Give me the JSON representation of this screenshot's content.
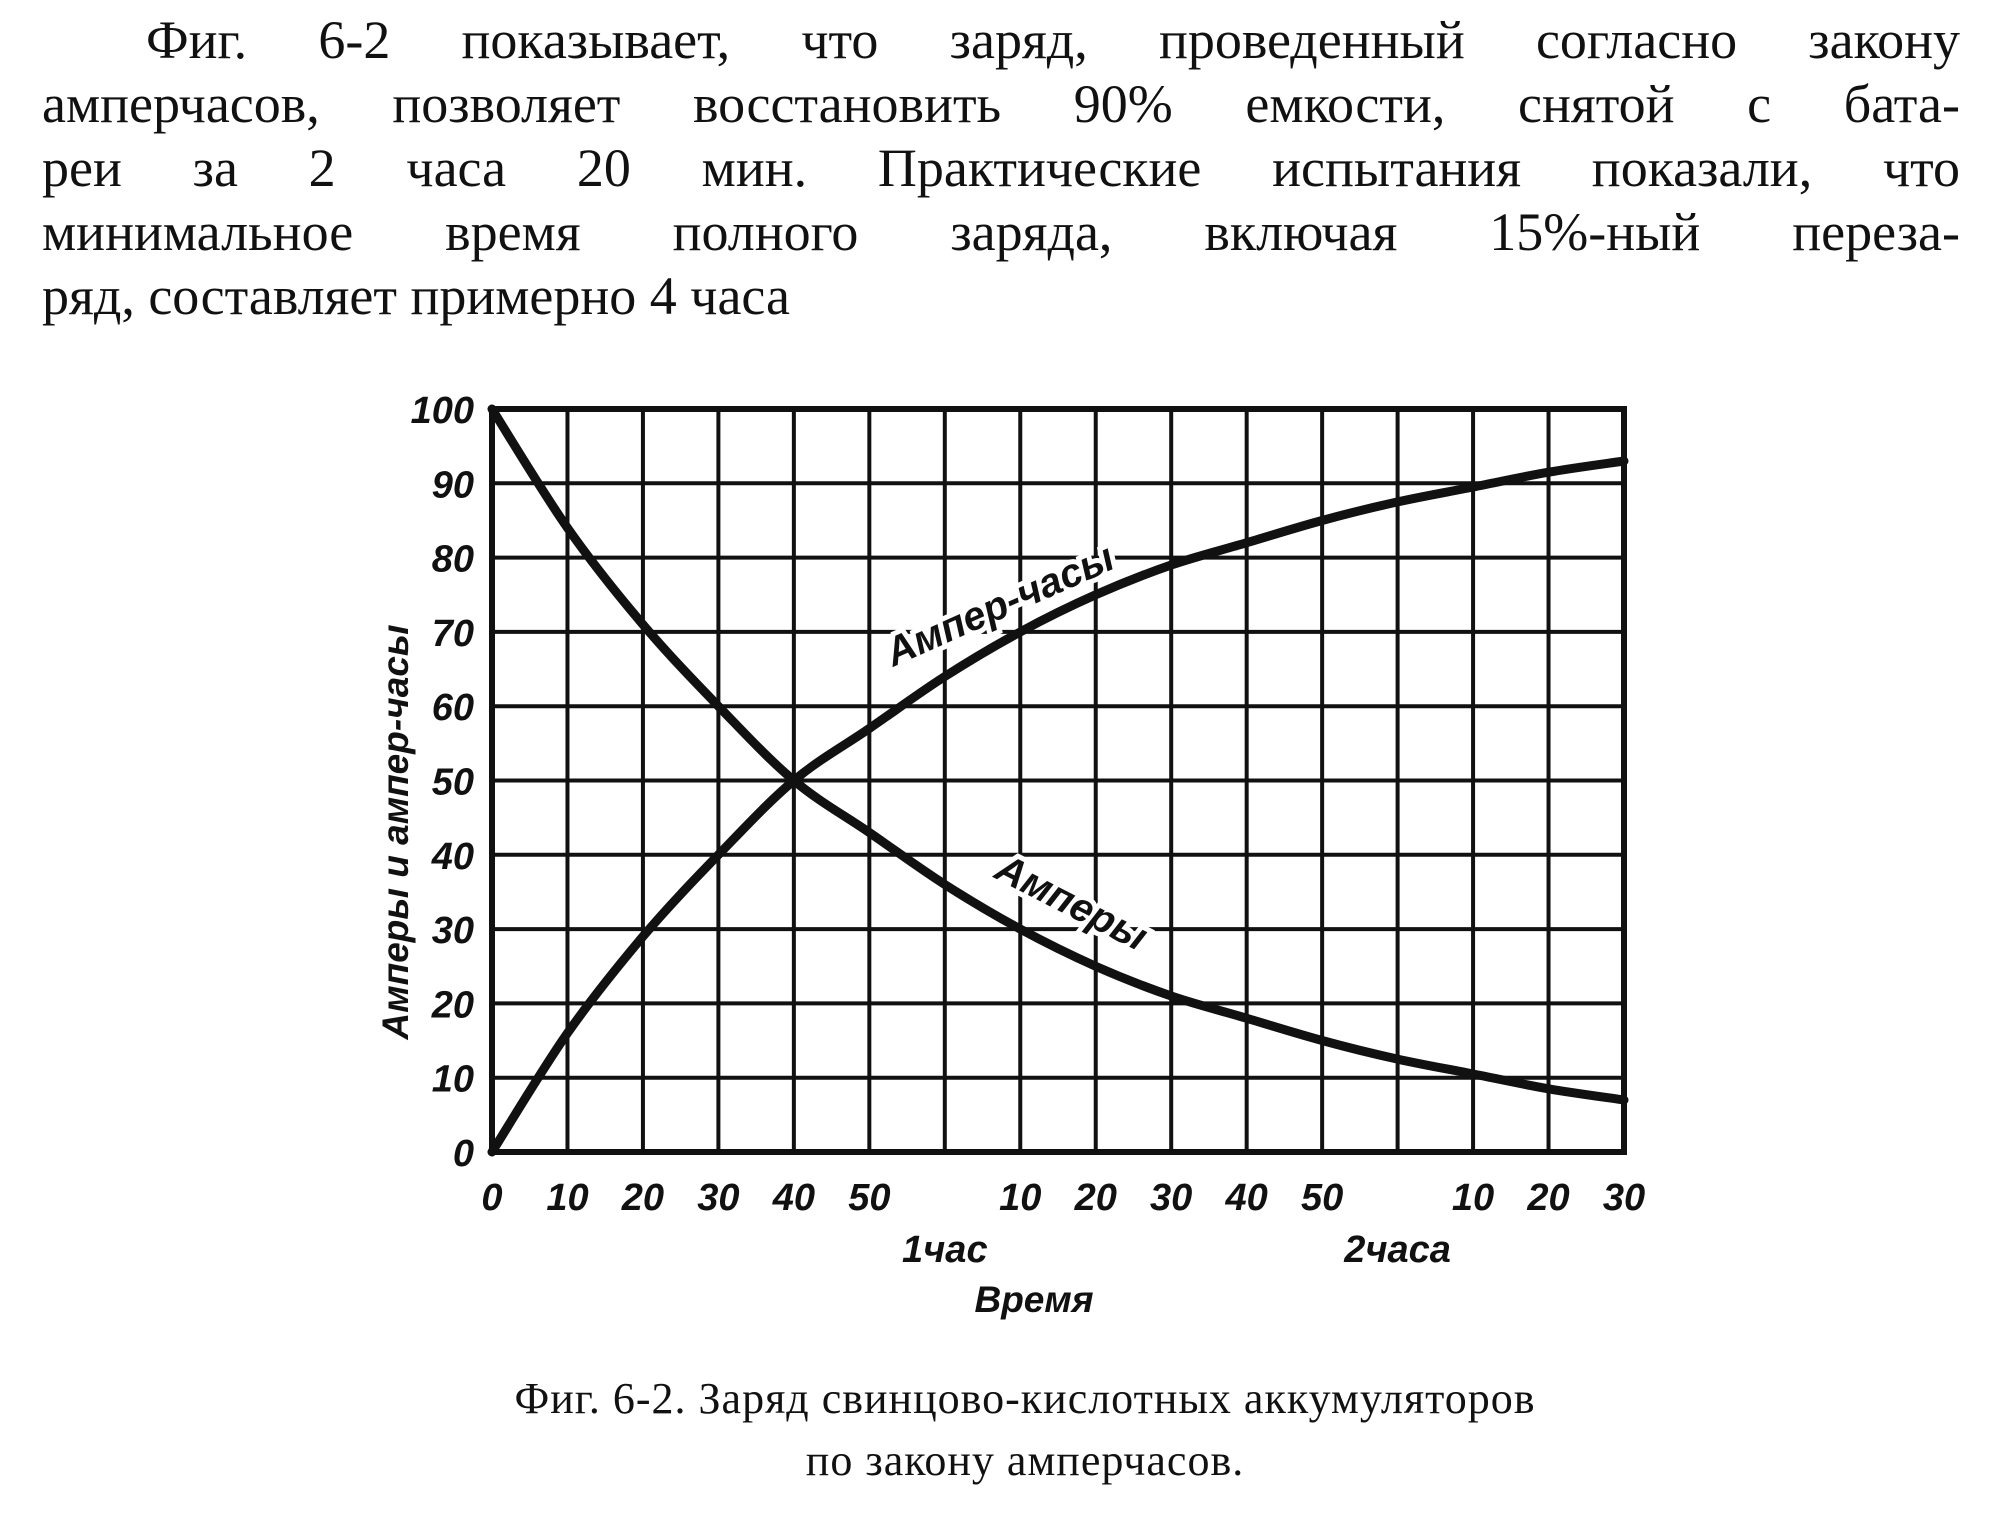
{
  "paragraph": {
    "lines": [
      "Фиг. 6-2 показывает, что заряд, проведенный согласно закону",
      "амперчасов, позволяет восстановить 90% емкости, снятой с бата-",
      "реи за 2 часа 20 мин. Практические испытания показали, что",
      "минимальное время полного заряда, включая 15%-ный переза-",
      "ряд, составляет примерно 4 часа"
    ]
  },
  "chart_data": {
    "type": "line",
    "ylabel": "Амперы и ампер-часы",
    "xlabel": "Время",
    "ylim": [
      0,
      100
    ],
    "xlim": [
      0,
      150
    ],
    "x_unit_note": "minutes",
    "yticks": [
      "0",
      "10",
      "20",
      "30",
      "40",
      "50",
      "60",
      "70",
      "80",
      "90",
      "100"
    ],
    "xticks": [
      {
        "x": 0,
        "label": "0"
      },
      {
        "x": 10,
        "label": "10"
      },
      {
        "x": 20,
        "label": "20"
      },
      {
        "x": 30,
        "label": "30"
      },
      {
        "x": 40,
        "label": "40"
      },
      {
        "x": 50,
        "label": "50"
      },
      {
        "x": 70,
        "label": "10"
      },
      {
        "x": 80,
        "label": "20"
      },
      {
        "x": 90,
        "label": "30"
      },
      {
        "x": 100,
        "label": "40"
      },
      {
        "x": 110,
        "label": "50"
      },
      {
        "x": 130,
        "label": "10"
      },
      {
        "x": 140,
        "label": "20"
      },
      {
        "x": 150,
        "label": "30"
      }
    ],
    "hour_labels": [
      {
        "x": 60,
        "label": "1час"
      },
      {
        "x": 120,
        "label": "2часа"
      }
    ],
    "grid": true,
    "series": [
      {
        "name": "Амперы",
        "x": [
          0,
          10,
          20,
          30,
          40,
          50,
          60,
          70,
          80,
          90,
          100,
          110,
          120,
          130,
          140,
          150
        ],
        "y": [
          100,
          84,
          71,
          60,
          50,
          43,
          36,
          30,
          25,
          21,
          18,
          15,
          12.5,
          10.5,
          8.5,
          7
        ]
      },
      {
        "name": "Ампер-часы",
        "x": [
          0,
          10,
          20,
          30,
          40,
          50,
          60,
          70,
          80,
          90,
          100,
          110,
          120,
          130,
          140,
          150
        ],
        "y": [
          0,
          16,
          29,
          40,
          50,
          57,
          64,
          70,
          75,
          79,
          82,
          85,
          87.5,
          89.5,
          91.5,
          93
        ]
      }
    ]
  },
  "caption": {
    "line1": "Фиг. 6-2. Заряд свинцово-кислотных аккумуляторов",
    "line2": "по  закону  амперчасов."
  },
  "colors": {
    "ink": "#111111",
    "paper": "#ffffff"
  }
}
